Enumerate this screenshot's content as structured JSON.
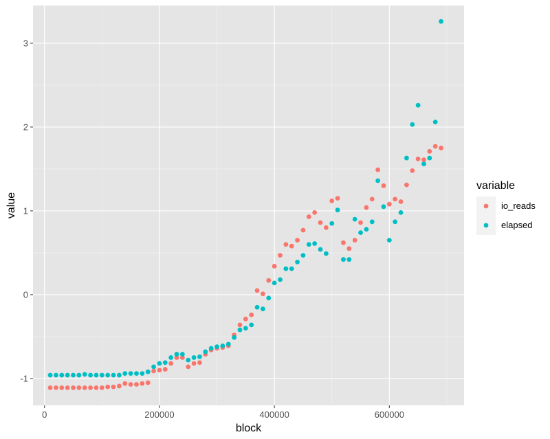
{
  "chart_data": {
    "type": "scatter",
    "xlabel": "block",
    "ylabel": "value",
    "xlim": [
      -20000,
      730000
    ],
    "ylim": [
      -1.32,
      3.45
    ],
    "x_ticks": [
      0,
      200000,
      400000,
      600000
    ],
    "x_tick_labels": [
      "0",
      "200000",
      "400000",
      "600000"
    ],
    "y_ticks": [
      -1,
      0,
      1,
      2,
      3
    ],
    "y_tick_labels": [
      "-1",
      "0",
      "1",
      "2",
      "3"
    ],
    "grid": true,
    "panel_background": "#e5e5e5",
    "legend": {
      "title": "variable",
      "placement": "right"
    },
    "series": [
      {
        "name": "io_reads",
        "color": "#f8766d",
        "points": [
          [
            10000,
            -1.11
          ],
          [
            20000,
            -1.11
          ],
          [
            30000,
            -1.11
          ],
          [
            40000,
            -1.11
          ],
          [
            50000,
            -1.11
          ],
          [
            60000,
            -1.11
          ],
          [
            70000,
            -1.11
          ],
          [
            80000,
            -1.11
          ],
          [
            90000,
            -1.11
          ],
          [
            100000,
            -1.11
          ],
          [
            110000,
            -1.1
          ],
          [
            120000,
            -1.1
          ],
          [
            130000,
            -1.09
          ],
          [
            140000,
            -1.06
          ],
          [
            150000,
            -1.07
          ],
          [
            160000,
            -1.07
          ],
          [
            170000,
            -1.06
          ],
          [
            180000,
            -1.05
          ],
          [
            190000,
            -0.91
          ],
          [
            200000,
            -0.9
          ],
          [
            210000,
            -0.89
          ],
          [
            220000,
            -0.82
          ],
          [
            230000,
            -0.75
          ],
          [
            240000,
            -0.75
          ],
          [
            250000,
            -0.86
          ],
          [
            260000,
            -0.82
          ],
          [
            270000,
            -0.81
          ],
          [
            280000,
            -0.71
          ],
          [
            290000,
            -0.66
          ],
          [
            300000,
            -0.64
          ],
          [
            310000,
            -0.63
          ],
          [
            320000,
            -0.61
          ],
          [
            330000,
            -0.48
          ],
          [
            340000,
            -0.36
          ],
          [
            350000,
            -0.29
          ],
          [
            360000,
            -0.24
          ],
          [
            370000,
            0.05
          ],
          [
            380000,
            0.01
          ],
          [
            390000,
            0.17
          ],
          [
            400000,
            0.34
          ],
          [
            410000,
            0.47
          ],
          [
            420000,
            0.6
          ],
          [
            430000,
            0.58
          ],
          [
            440000,
            0.65
          ],
          [
            450000,
            0.77
          ],
          [
            460000,
            0.93
          ],
          [
            470000,
            0.98
          ],
          [
            480000,
            0.86
          ],
          [
            490000,
            0.8
          ],
          [
            500000,
            1.12
          ],
          [
            510000,
            1.15
          ],
          [
            520000,
            0.62
          ],
          [
            530000,
            0.55
          ],
          [
            540000,
            0.65
          ],
          [
            550000,
            0.86
          ],
          [
            560000,
            1.04
          ],
          [
            570000,
            1.14
          ],
          [
            580000,
            1.49
          ],
          [
            590000,
            1.3
          ],
          [
            600000,
            1.08
          ],
          [
            610000,
            1.14
          ],
          [
            620000,
            1.11
          ],
          [
            630000,
            1.31
          ],
          [
            640000,
            1.48
          ],
          [
            650000,
            1.62
          ],
          [
            660000,
            1.61
          ],
          [
            670000,
            1.71
          ],
          [
            680000,
            1.77
          ],
          [
            690000,
            1.75
          ]
        ]
      },
      {
        "name": "elapsed",
        "color": "#00bfc4",
        "points": [
          [
            10000,
            -0.96
          ],
          [
            20000,
            -0.96
          ],
          [
            30000,
            -0.96
          ],
          [
            40000,
            -0.96
          ],
          [
            50000,
            -0.96
          ],
          [
            60000,
            -0.96
          ],
          [
            70000,
            -0.95
          ],
          [
            80000,
            -0.96
          ],
          [
            90000,
            -0.96
          ],
          [
            100000,
            -0.96
          ],
          [
            110000,
            -0.96
          ],
          [
            120000,
            -0.96
          ],
          [
            130000,
            -0.96
          ],
          [
            140000,
            -0.94
          ],
          [
            150000,
            -0.94
          ],
          [
            160000,
            -0.94
          ],
          [
            170000,
            -0.94
          ],
          [
            180000,
            -0.92
          ],
          [
            190000,
            -0.86
          ],
          [
            200000,
            -0.82
          ],
          [
            210000,
            -0.81
          ],
          [
            220000,
            -0.75
          ],
          [
            230000,
            -0.71
          ],
          [
            240000,
            -0.71
          ],
          [
            250000,
            -0.78
          ],
          [
            260000,
            -0.75
          ],
          [
            270000,
            -0.74
          ],
          [
            280000,
            -0.68
          ],
          [
            290000,
            -0.64
          ],
          [
            300000,
            -0.62
          ],
          [
            310000,
            -0.61
          ],
          [
            320000,
            -0.59
          ],
          [
            330000,
            -0.51
          ],
          [
            340000,
            -0.42
          ],
          [
            350000,
            -0.4
          ],
          [
            360000,
            -0.36
          ],
          [
            370000,
            -0.15
          ],
          [
            380000,
            -0.17
          ],
          [
            390000,
            -0.04
          ],
          [
            400000,
            0.14
          ],
          [
            410000,
            0.18
          ],
          [
            420000,
            0.31
          ],
          [
            430000,
            0.31
          ],
          [
            440000,
            0.39
          ],
          [
            450000,
            0.47
          ],
          [
            460000,
            0.6
          ],
          [
            470000,
            0.61
          ],
          [
            480000,
            0.54
          ],
          [
            490000,
            0.49
          ],
          [
            500000,
            0.85
          ],
          [
            510000,
            1.01
          ],
          [
            520000,
            0.42
          ],
          [
            530000,
            0.42
          ],
          [
            540000,
            0.9
          ],
          [
            550000,
            0.74
          ],
          [
            560000,
            0.78
          ],
          [
            570000,
            0.87
          ],
          [
            580000,
            1.36
          ],
          [
            590000,
            1.05
          ],
          [
            600000,
            0.65
          ],
          [
            610000,
            0.87
          ],
          [
            620000,
            0.98
          ],
          [
            630000,
            1.63
          ],
          [
            640000,
            2.03
          ],
          [
            650000,
            2.26
          ],
          [
            660000,
            1.56
          ],
          [
            670000,
            1.63
          ],
          [
            680000,
            2.06
          ],
          [
            690000,
            3.26
          ]
        ]
      }
    ]
  }
}
